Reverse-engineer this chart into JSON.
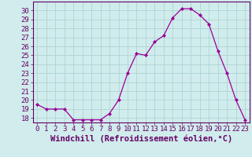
{
  "x": [
    0,
    1,
    2,
    3,
    4,
    5,
    6,
    7,
    8,
    9,
    10,
    11,
    12,
    13,
    14,
    15,
    16,
    17,
    18,
    19,
    20,
    21,
    22,
    23
  ],
  "y": [
    19.5,
    19.0,
    19.0,
    19.0,
    17.8,
    17.8,
    17.8,
    17.8,
    18.5,
    20.0,
    23.0,
    25.2,
    25.0,
    26.5,
    27.2,
    29.2,
    30.2,
    30.2,
    29.5,
    28.5,
    25.5,
    23.0,
    20.0,
    17.8
  ],
  "xlabel": "Windchill (Refroidissement éolien,°C)",
  "xlim": [
    -0.5,
    23.5
  ],
  "ylim": [
    17.5,
    31.0
  ],
  "yticks": [
    18,
    19,
    20,
    21,
    22,
    23,
    24,
    25,
    26,
    27,
    28,
    29,
    30
  ],
  "xticks": [
    0,
    1,
    2,
    3,
    4,
    5,
    6,
    7,
    8,
    9,
    10,
    11,
    12,
    13,
    14,
    15,
    16,
    17,
    18,
    19,
    20,
    21,
    22,
    23
  ],
  "line_color": "#990099",
  "marker_color": "#990099",
  "bg_color": "#d0ecec",
  "grid_color": "#b0d4d4",
  "xlabel_fontsize": 7.5,
  "tick_fontsize": 6.5
}
